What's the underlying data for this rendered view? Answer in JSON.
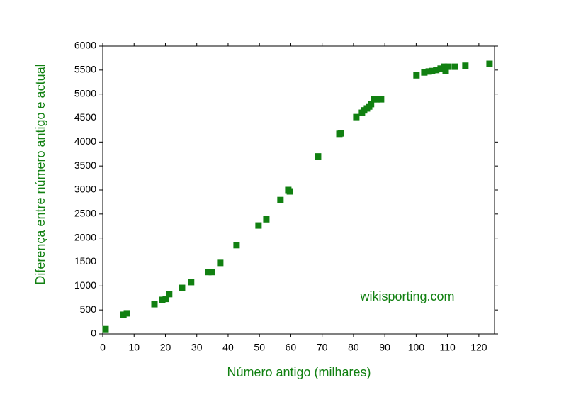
{
  "chart_data": {
    "type": "scatter",
    "xlabel": "Número antigo (milhares)",
    "ylabel": "Diferença entre número antigo e actual",
    "annotation": "wikisporting.com",
    "color": "#118011",
    "xlim": [
      0,
      125
    ],
    "xticks": [
      0,
      10,
      20,
      30,
      40,
      50,
      60,
      70,
      80,
      90,
      100,
      110,
      120
    ],
    "ylim": [
      0,
      6000
    ],
    "yticks": [
      0,
      500,
      1000,
      1500,
      2000,
      2500,
      3000,
      3500,
      4000,
      4500,
      5000,
      5500,
      6000
    ],
    "x": [
      0.9,
      6.6,
      7.7,
      16.5,
      19,
      20.1,
      21.2,
      25.3,
      28.2,
      33.7,
      34.8,
      37.5,
      42.7,
      49.7,
      52.2,
      56.7,
      59.2,
      59.7,
      68.7,
      75.5,
      76,
      80.9,
      82.7,
      83.4,
      84.3,
      85,
      85.6,
      86.6,
      87.5,
      88.8,
      100.1,
      102.6,
      104,
      105.1,
      106.4,
      107.8,
      108.9,
      109.4,
      110.1,
      112.3,
      115.7,
      123.4
    ],
    "y": [
      100,
      400,
      430,
      620,
      710,
      730,
      830,
      960,
      1080,
      1290,
      1290,
      1480,
      1850,
      2260,
      2390,
      2790,
      3000,
      2970,
      3700,
      4170,
      4180,
      4520,
      4610,
      4660,
      4700,
      4740,
      4790,
      4890,
      4890,
      4890,
      5390,
      5450,
      5470,
      5480,
      5500,
      5530,
      5570,
      5480,
      5570,
      5570,
      5590,
      5630
    ]
  }
}
